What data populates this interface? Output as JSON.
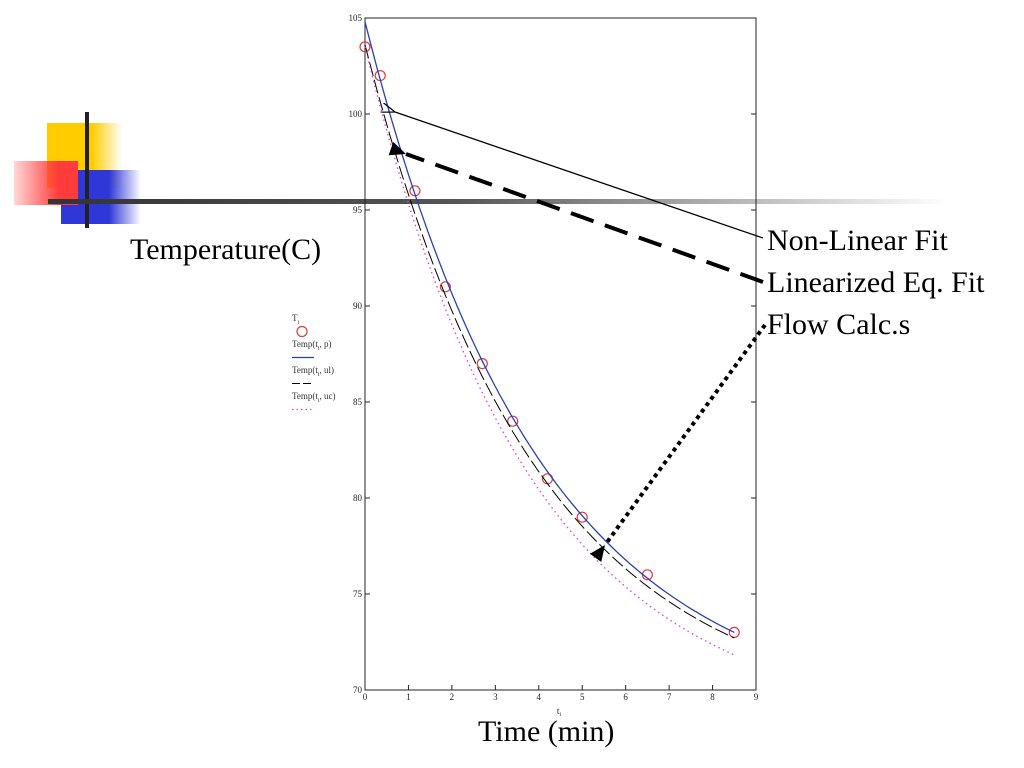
{
  "colors": {
    "measured": "#e23b3b",
    "nonlinear_fit": "#2a3fb8",
    "linearized_fit": "#000000",
    "flow_calc": "#e03ae0",
    "deco_yellow": "#ffcc00",
    "deco_red": "#ff3b3b",
    "deco_blue": "#2f37d9"
  },
  "annotations": {
    "nonlinear": "Non-Linear Fit",
    "linearized": "Linearized Eq. Fit",
    "flow": "Flow Calc.s",
    "yaxis_big": "Temperature(C)",
    "xaxis_big": "Time (min)"
  },
  "legend": {
    "measured": "T",
    "measured_sub": "i",
    "nonlinear": "Temp(t",
    "nonlinear_args": ", p)",
    "linearized": "Temp(t",
    "linearized_args": ", ul)",
    "flow": "Temp(t",
    "flow_args": ", uc)",
    "sub_i": "i"
  },
  "chart_data": {
    "type": "scatter",
    "xlabel": "t",
    "xlabel_sub": "i",
    "xlim": [
      0,
      9
    ],
    "ylim": [
      70,
      105
    ],
    "xticks": [
      0,
      1,
      2,
      3,
      4,
      5,
      6,
      7,
      8,
      9
    ],
    "yticks": [
      70,
      75,
      80,
      85,
      90,
      95,
      100,
      105
    ],
    "series": [
      {
        "key": "measured",
        "style": "circles",
        "x": [
          0,
          0.35,
          1.15,
          1.85,
          2.7,
          3.4,
          4.2,
          5.0,
          6.5,
          8.5
        ],
        "y": [
          103.5,
          102.0,
          96.0,
          91.0,
          87.0,
          84.0,
          81.0,
          79.0,
          76.0,
          73.0
        ]
      },
      {
        "key": "nonlinear",
        "style": "solid",
        "model": {
          "T_inf": 68.6,
          "A": 36.2,
          "k": 0.248,
          "x_from": 0,
          "x_to": 8.5
        }
      },
      {
        "key": "linearized",
        "style": "longdash",
        "model": {
          "T_inf": 68.6,
          "A": 35.0,
          "k": 0.252,
          "x_from": 0,
          "x_to": 8.5
        }
      },
      {
        "key": "flow",
        "style": "dotted",
        "model": {
          "T_inf": 68.0,
          "A": 35.5,
          "k": 0.262,
          "x_from": 0,
          "x_to": 8.5
        }
      }
    ]
  }
}
